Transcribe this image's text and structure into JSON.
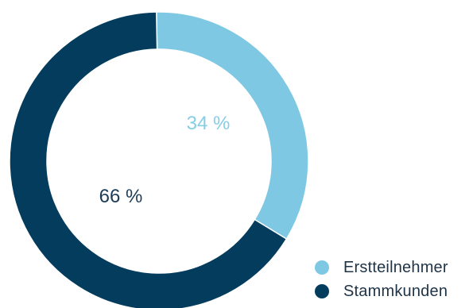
{
  "chart_data": {
    "type": "pie",
    "variant": "donut",
    "categories": [
      "Erstteilnehmer",
      "Stammkunden"
    ],
    "values": [
      34,
      66
    ],
    "data_labels": [
      "34 %",
      "66 %"
    ],
    "colors": [
      "#7ec8e3",
      "#043c5e"
    ],
    "label_colors": [
      "#86cde6",
      "#1d3b55"
    ],
    "legend": {
      "position": "bottom-right",
      "items": [
        "Erstteilnehmer",
        "Stammkunden"
      ]
    }
  }
}
